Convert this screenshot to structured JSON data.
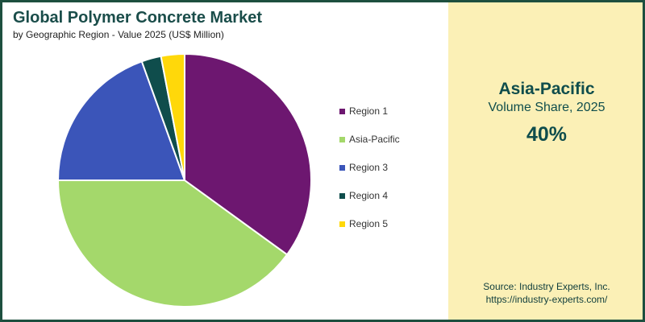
{
  "chart_data": {
    "type": "pie",
    "title": "Global Polymer Concrete Market",
    "subtitle": "by Geographic Region - Value 2025 (US$ Million)",
    "categories": [
      "Region 1",
      "Asia-Pacific",
      "Region 3",
      "Region 4",
      "Region 5"
    ],
    "values": [
      35,
      40,
      19.5,
      2.5,
      3
    ],
    "colors": [
      "#6d1770",
      "#a4d86b",
      "#3b55b9",
      "#0f4d4c",
      "#ffd80a"
    ],
    "legend": "right"
  },
  "highlight": {
    "region": "Asia-Pacific",
    "label": "Volume Share, 2025",
    "value": "40%"
  },
  "source": {
    "line1": "Source: Industry Experts, Inc.",
    "line2": "https://industry-experts.com/"
  }
}
